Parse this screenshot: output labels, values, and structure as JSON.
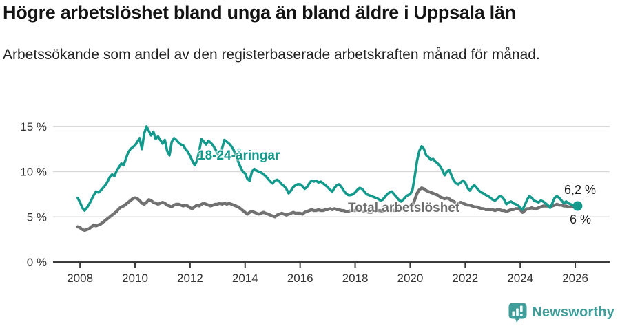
{
  "header": {
    "title": "Högre arbetslöshet bland unga än bland äldre i Uppsala län",
    "subtitle": "Arbetssökande som andel av den registerbaserade arbetskraften månad för månad."
  },
  "footer": {
    "brand": "Newsworthy",
    "brand_color": "#3f9e99"
  },
  "colors": {
    "young_line": "#149a8c",
    "total_line": "#717171",
    "gridline": "#d9d9d9",
    "axis": "#3b3b3b",
    "tick_label": "#333333"
  },
  "chart_data": {
    "type": "line",
    "unit": "%",
    "frequency": "monthly",
    "x_start_decimal_year": 2007.9167,
    "xlim": [
      2007.02,
      2027.25
    ],
    "ylim": [
      0,
      16.05
    ],
    "grid": "horizontal",
    "legend_position": "inline-labels",
    "x_ticks": [
      {
        "value": 2008,
        "label": "2008"
      },
      {
        "value": 2010,
        "label": "2010"
      },
      {
        "value": 2012,
        "label": "2012"
      },
      {
        "value": 2014,
        "label": "2014"
      },
      {
        "value": 2016,
        "label": "2016"
      },
      {
        "value": 2018,
        "label": "2018"
      },
      {
        "value": 2020,
        "label": "2020"
      },
      {
        "value": 2022,
        "label": "2022"
      },
      {
        "value": 2024,
        "label": "2024"
      },
      {
        "value": 2026,
        "label": "2026"
      }
    ],
    "y_ticks": [
      {
        "value": 0,
        "label": "0 %"
      },
      {
        "value": 5,
        "label": "5 %"
      },
      {
        "value": 10,
        "label": "10 %"
      },
      {
        "value": 15,
        "label": "15 %"
      }
    ],
    "series": [
      {
        "name": "18-24-åringar",
        "color": "#149a8c",
        "end_label": "6,2 %",
        "end_value": 6.2,
        "end_dot": true,
        "values": [
          7.1,
          6.6,
          6.0,
          5.7,
          6.0,
          6.4,
          6.9,
          7.4,
          7.8,
          7.7,
          7.9,
          8.2,
          8.5,
          8.9,
          9.4,
          9.7,
          9.5,
          10.1,
          10.5,
          10.9,
          10.7,
          11.4,
          12.1,
          12.5,
          12.7,
          12.9,
          13.3,
          13.7,
          12.5,
          14.2,
          15.0,
          14.5,
          14.0,
          14.4,
          13.6,
          13.9,
          13.5,
          13.1,
          13.5,
          12.3,
          11.8,
          13.3,
          13.7,
          13.5,
          13.2,
          13.0,
          12.9,
          12.5,
          12.2,
          11.7,
          11.2,
          10.7,
          11.2,
          12.3,
          13.6,
          13.3,
          13.0,
          13.4,
          13.2,
          12.9,
          12.5,
          12.0,
          11.4,
          12.6,
          13.5,
          13.3,
          13.1,
          12.8,
          12.4,
          11.8,
          11.1,
          10.5,
          10.0,
          9.8,
          9.2,
          9.0,
          10.0,
          10.3,
          10.1,
          10.0,
          9.9,
          9.7,
          9.5,
          9.2,
          8.9,
          8.7,
          9.0,
          9.1,
          8.9,
          8.6,
          8.4,
          8.1,
          7.6,
          7.9,
          8.3,
          8.5,
          8.6,
          8.6,
          8.4,
          8.1,
          8.3,
          8.7,
          9.0,
          8.9,
          9.0,
          8.8,
          8.9,
          8.7,
          8.5,
          8.3,
          8.0,
          7.8,
          8.2,
          8.5,
          8.6,
          8.3,
          7.9,
          7.6,
          7.4,
          7.4,
          7.5,
          7.7,
          8.0,
          8.2,
          8.1,
          7.8,
          7.5,
          7.4,
          7.3,
          7.2,
          7.1,
          7.0,
          6.8,
          6.9,
          7.2,
          7.5,
          7.7,
          7.8,
          7.5,
          7.2,
          6.9,
          6.7,
          6.9,
          7.2,
          7.4,
          7.5,
          8.0,
          9.5,
          11.2,
          12.3,
          12.8,
          12.5,
          11.8,
          11.6,
          11.3,
          11.4,
          11.1,
          10.9,
          10.6,
          10.2,
          9.6,
          10.0,
          10.2,
          9.6,
          9.0,
          8.7,
          8.6,
          8.8,
          9.0,
          8.8,
          8.2,
          7.9,
          8.3,
          8.5,
          8.2,
          7.9,
          7.7,
          7.6,
          7.4,
          7.3,
          7.1,
          6.9,
          6.8,
          7.0,
          7.3,
          7.2,
          6.9,
          6.4,
          6.6,
          6.7,
          6.5,
          6.4,
          6.3,
          6.0,
          5.8,
          6.3,
          6.9,
          7.3,
          7.1,
          6.8,
          6.7,
          6.6,
          6.8,
          6.7,
          6.5,
          6.3,
          6.0,
          6.5,
          7.1,
          7.3,
          7.1,
          6.8,
          6.5,
          6.7,
          6.5,
          6.4,
          6.3,
          6.2,
          6.2
        ]
      },
      {
        "name": "Total arbetslöshet",
        "color": "#717171",
        "end_label": "6 %",
        "end_value": 6.0,
        "end_dot": false,
        "values": [
          3.9,
          3.8,
          3.6,
          3.5,
          3.6,
          3.7,
          3.9,
          4.1,
          4.0,
          4.1,
          4.2,
          4.4,
          4.6,
          4.8,
          5.0,
          5.2,
          5.4,
          5.6,
          5.9,
          6.1,
          6.2,
          6.4,
          6.6,
          6.8,
          7.0,
          7.1,
          7.0,
          6.8,
          6.5,
          6.4,
          6.6,
          6.9,
          6.8,
          6.6,
          6.5,
          6.4,
          6.5,
          6.6,
          6.5,
          6.3,
          6.2,
          6.1,
          6.3,
          6.4,
          6.4,
          6.3,
          6.2,
          6.3,
          6.2,
          6.0,
          5.9,
          6.1,
          6.3,
          6.2,
          6.4,
          6.5,
          6.4,
          6.3,
          6.2,
          6.3,
          6.4,
          6.4,
          6.5,
          6.4,
          6.5,
          6.4,
          6.5,
          6.4,
          6.3,
          6.2,
          6.1,
          5.9,
          5.7,
          5.5,
          5.3,
          5.5,
          5.6,
          5.5,
          5.4,
          5.3,
          5.4,
          5.5,
          5.4,
          5.3,
          5.2,
          5.1,
          5.0,
          5.2,
          5.3,
          5.4,
          5.3,
          5.2,
          5.3,
          5.4,
          5.5,
          5.4,
          5.4,
          5.4,
          5.3,
          5.5,
          5.6,
          5.7,
          5.8,
          5.7,
          5.7,
          5.8,
          5.7,
          5.7,
          5.8,
          5.8,
          5.9,
          5.8,
          5.9,
          5.8,
          5.8,
          5.7,
          5.7,
          5.6,
          5.6,
          5.7,
          5.7,
          5.7,
          5.8,
          5.8,
          5.7,
          5.6,
          5.6,
          5.5,
          5.5,
          5.6,
          5.6,
          5.7,
          5.7,
          5.6,
          5.7,
          5.7,
          5.8,
          5.8,
          5.7,
          5.7,
          5.8,
          5.8,
          5.9,
          6.0,
          6.0,
          6.1,
          6.3,
          6.9,
          7.6,
          8.0,
          8.2,
          8.1,
          7.9,
          7.8,
          7.7,
          7.6,
          7.5,
          7.4,
          7.2,
          7.1,
          7.0,
          7.1,
          7.0,
          6.8,
          6.7,
          6.5,
          6.5,
          6.6,
          6.5,
          6.4,
          6.3,
          6.3,
          6.2,
          6.1,
          6.1,
          6.0,
          5.9,
          5.9,
          5.8,
          5.8,
          5.8,
          5.8,
          5.7,
          5.8,
          5.8,
          5.7,
          5.7,
          5.6,
          5.7,
          5.8,
          5.8,
          5.9,
          5.9,
          5.8,
          5.5,
          5.7,
          5.9,
          5.9,
          6.0,
          5.9,
          5.9,
          6.0,
          6.1,
          6.2,
          6.2,
          6.2,
          6.1,
          6.2,
          6.3,
          6.4,
          6.3,
          6.3,
          6.2,
          6.2,
          6.1,
          6.1,
          6.1,
          6.1,
          6.0
        ]
      }
    ]
  }
}
